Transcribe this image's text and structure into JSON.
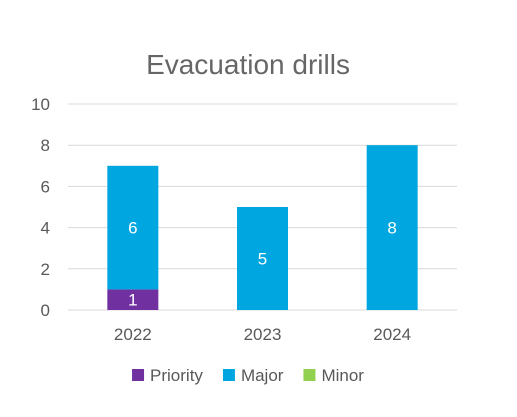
{
  "chart_data": {
    "type": "bar",
    "stacked": true,
    "title": "Evacuation drills",
    "xlabel": "",
    "ylabel": "",
    "categories": [
      "2022",
      "2023",
      "2024"
    ],
    "ylim": [
      0,
      10
    ],
    "yticks": [
      0,
      2,
      4,
      6,
      8,
      10
    ],
    "grid": true,
    "legend_position": "bottom",
    "series": [
      {
        "name": "Priority",
        "values": [
          1,
          0,
          0
        ],
        "color": "#7030a0",
        "labels": [
          "1",
          "",
          ""
        ]
      },
      {
        "name": "Major",
        "values": [
          6,
          5,
          8
        ],
        "color": "#00a6e0",
        "labels": [
          "6",
          "5",
          "8"
        ]
      },
      {
        "name": "Minor",
        "values": [
          0,
          0,
          0
        ],
        "color": "#92d050",
        "labels": [
          "",
          "",
          ""
        ]
      }
    ]
  }
}
